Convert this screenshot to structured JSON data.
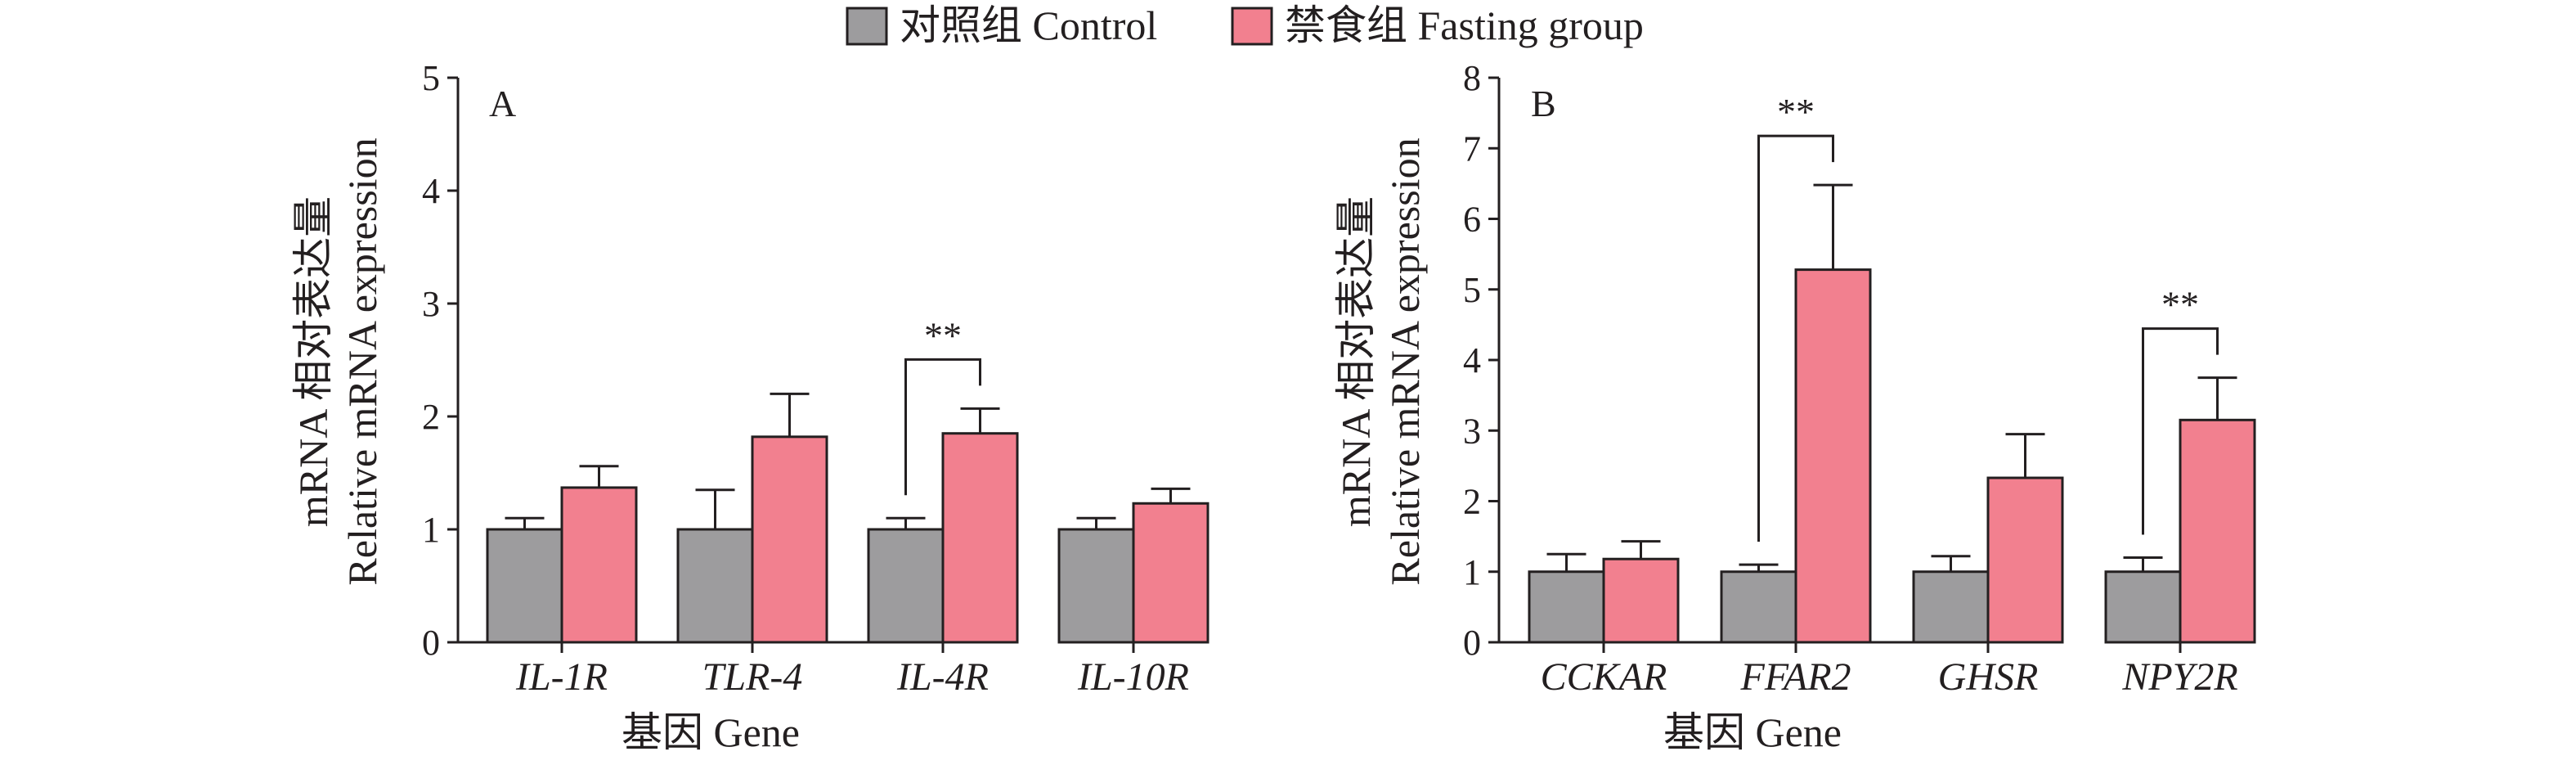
{
  "legend": {
    "items": [
      {
        "label": "对照组 Control",
        "color": "#9d9c9e"
      },
      {
        "label": "禁食组 Fasting group",
        "color": "#f2808f"
      }
    ]
  },
  "colors": {
    "axis": "#231f20",
    "control": "#9d9c9e",
    "fasting": "#f2808f"
  },
  "chart_data": [
    {
      "type": "bar",
      "panel_label": "A",
      "ylabel_line1": "mRNA 相对表达量",
      "ylabel_line2": "Relative mRNA expression",
      "xlabel": "基因 Gene",
      "ylim": [
        0,
        5
      ],
      "yticks": [
        0,
        1,
        2,
        3,
        4,
        5
      ],
      "categories": [
        "IL-1R",
        "TLR-4",
        "IL-4R",
        "IL-10R"
      ],
      "series": [
        {
          "name": "对照组 Control",
          "values": [
            1.0,
            1.0,
            1.0,
            1.0
          ],
          "errors": [
            0.1,
            0.35,
            0.1,
            0.1
          ]
        },
        {
          "name": "禁食组 Fasting group",
          "values": [
            1.37,
            1.82,
            1.85,
            1.23
          ],
          "errors": [
            0.19,
            0.38,
            0.22,
            0.13
          ]
        }
      ],
      "significance": [
        {
          "category_index": 2,
          "label": "**"
        }
      ],
      "grid": false
    },
    {
      "type": "bar",
      "panel_label": "B",
      "ylabel_line1": "mRNA 相对表达量",
      "ylabel_line2": "Relative mRNA expression",
      "xlabel": "基因 Gene",
      "ylim": [
        0,
        8
      ],
      "yticks": [
        0,
        1,
        2,
        3,
        4,
        5,
        6,
        7,
        8
      ],
      "categories": [
        "CCKAR",
        "FFAR2",
        "GHSR",
        "NPY2R"
      ],
      "series": [
        {
          "name": "对照组 Control",
          "values": [
            1.0,
            1.0,
            1.0,
            1.0
          ],
          "errors": [
            0.25,
            0.1,
            0.22,
            0.2
          ]
        },
        {
          "name": "禁食组 Fasting group",
          "values": [
            1.18,
            5.28,
            2.33,
            3.15
          ],
          "errors": [
            0.25,
            1.2,
            0.62,
            0.6
          ]
        }
      ],
      "significance": [
        {
          "category_index": 1,
          "label": "**"
        },
        {
          "category_index": 3,
          "label": "**"
        }
      ],
      "grid": false
    }
  ]
}
